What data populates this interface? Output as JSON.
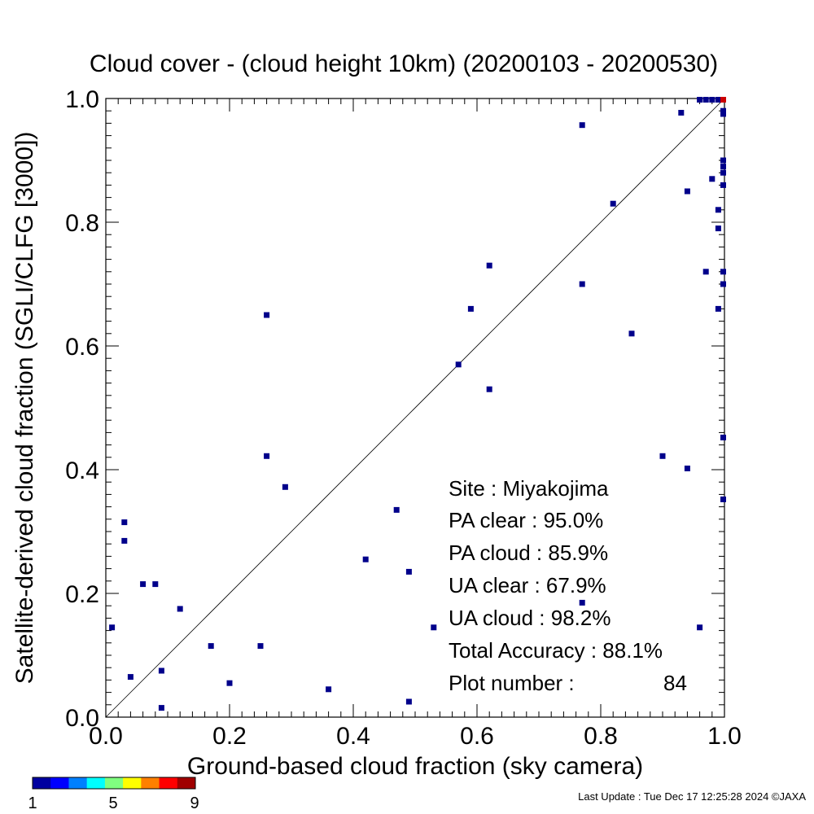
{
  "chart_data": {
    "type": "scatter",
    "title": "Cloud cover - (cloud height 10km)  (20200103 - 20200530)",
    "xlabel": "Ground-based cloud fraction (sky camera)",
    "ylabel": "Satellite-derived cloud fraction (SGLI/CLFG [3000])",
    "xlim": [
      0.0,
      1.0
    ],
    "ylim": [
      0.0,
      1.0
    ],
    "xticks": [
      "0.0",
      "0.2",
      "0.4",
      "0.6",
      "0.8",
      "1.0"
    ],
    "yticks": [
      "0.0",
      "0.2",
      "0.4",
      "0.6",
      "0.8",
      "1.0"
    ],
    "xtick_values": [
      0.0,
      0.2,
      0.4,
      0.6,
      0.8,
      1.0
    ],
    "ytick_values": [
      0.0,
      0.2,
      0.4,
      0.6,
      0.8,
      1.0
    ],
    "minor_tick_step": 0.02,
    "reference_line": "y = x",
    "grid": false,
    "marker_color_low": "#00008b",
    "marker_color_high": "#cc0000",
    "points": [
      {
        "x": 0.01,
        "y": 0.145
      },
      {
        "x": 0.03,
        "y": 0.315
      },
      {
        "x": 0.03,
        "y": 0.285
      },
      {
        "x": 0.04,
        "y": 0.065
      },
      {
        "x": 0.06,
        "y": 0.215
      },
      {
        "x": 0.08,
        "y": 0.215
      },
      {
        "x": 0.09,
        "y": 0.075
      },
      {
        "x": 0.09,
        "y": 0.015
      },
      {
        "x": 0.12,
        "y": 0.175
      },
      {
        "x": 0.17,
        "y": 0.115
      },
      {
        "x": 0.2,
        "y": 0.055
      },
      {
        "x": 0.25,
        "y": 0.115
      },
      {
        "x": 0.26,
        "y": 0.65
      },
      {
        "x": 0.26,
        "y": 0.422
      },
      {
        "x": 0.29,
        "y": 0.372
      },
      {
        "x": 0.36,
        "y": 0.045
      },
      {
        "x": 0.42,
        "y": 0.255
      },
      {
        "x": 0.47,
        "y": 0.335
      },
      {
        "x": 0.49,
        "y": 0.235
      },
      {
        "x": 0.49,
        "y": 0.025
      },
      {
        "x": 0.53,
        "y": 0.145
      },
      {
        "x": 0.57,
        "y": 0.57
      },
      {
        "x": 0.59,
        "y": 0.66
      },
      {
        "x": 0.62,
        "y": 0.73
      },
      {
        "x": 0.62,
        "y": 0.53
      },
      {
        "x": 0.77,
        "y": 0.957
      },
      {
        "x": 0.77,
        "y": 0.7
      },
      {
        "x": 0.77,
        "y": 0.185
      },
      {
        "x": 0.82,
        "y": 0.83
      },
      {
        "x": 0.85,
        "y": 0.62
      },
      {
        "x": 0.9,
        "y": 0.422
      },
      {
        "x": 0.93,
        "y": 0.977
      },
      {
        "x": 0.94,
        "y": 0.85
      },
      {
        "x": 0.94,
        "y": 0.402
      },
      {
        "x": 0.96,
        "y": 0.145
      },
      {
        "x": 0.97,
        "y": 0.72
      },
      {
        "x": 0.98,
        "y": 0.87
      },
      {
        "x": 0.99,
        "y": 0.82
      },
      {
        "x": 0.99,
        "y": 0.79
      },
      {
        "x": 0.99,
        "y": 0.66
      },
      {
        "x": 1.0,
        "y": 0.98
      },
      {
        "x": 1.0,
        "y": 0.975
      },
      {
        "x": 1.0,
        "y": 0.9
      },
      {
        "x": 1.0,
        "y": 0.89
      },
      {
        "x": 1.0,
        "y": 0.88
      },
      {
        "x": 1.0,
        "y": 0.86
      },
      {
        "x": 1.0,
        "y": 0.72
      },
      {
        "x": 1.0,
        "y": 0.7
      },
      {
        "x": 1.0,
        "y": 0.452
      },
      {
        "x": 1.0,
        "y": 0.352
      },
      {
        "x": 0.96,
        "y": 1.0
      },
      {
        "x": 0.97,
        "y": 1.0
      },
      {
        "x": 0.98,
        "y": 1.0
      },
      {
        "x": 0.99,
        "y": 1.0
      },
      {
        "x": 1.0,
        "y": 1.0,
        "count": 9
      }
    ],
    "colorbar": {
      "colors": [
        "#0000a0",
        "#0000ff",
        "#0080ff",
        "#00ffff",
        "#80ff80",
        "#ffff00",
        "#ff8000",
        "#ff0000",
        "#a00000"
      ],
      "min_label": "1",
      "mid_label": "5",
      "max_label": "9"
    }
  },
  "stats": {
    "site": "Site : Miyakojima",
    "pa_clear": "PA clear :  95.0%",
    "pa_cloud": "PA cloud :  85.9%",
    "ua_clear": "UA clear :  67.9%",
    "ua_cloud": "UA cloud :  98.2%",
    "total_accuracy": "Total Accuracy :  88.1%",
    "plot_number_label": "Plot number :",
    "plot_number_value": "84"
  },
  "footer": {
    "last_update": "Last Update : Tue Dec 17 12:25:28 2024  ©JAXA"
  }
}
